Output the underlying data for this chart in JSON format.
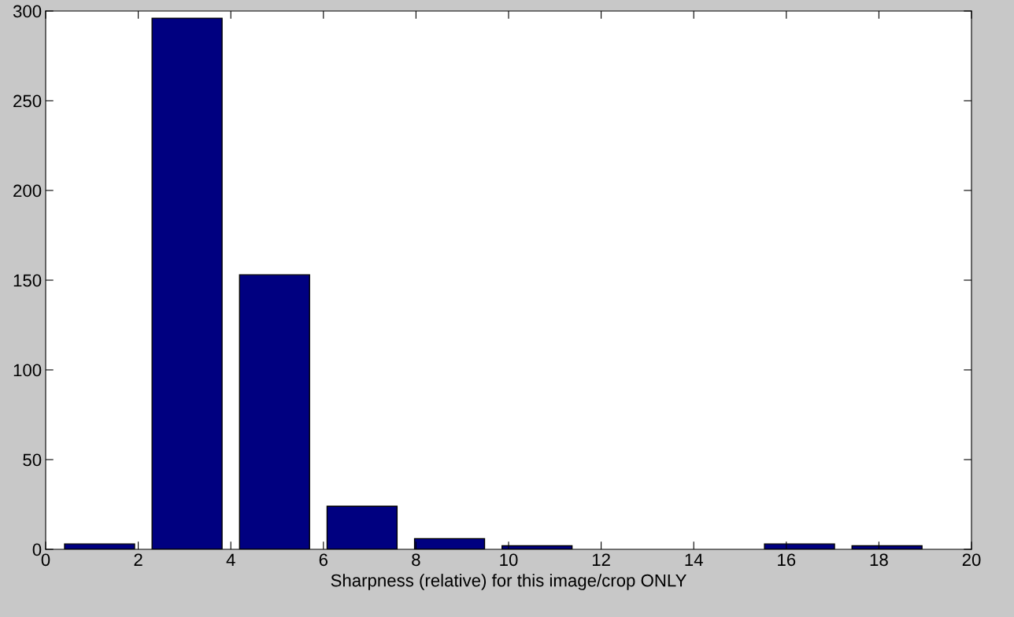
{
  "chart_data": {
    "type": "histogram",
    "xlabel": "Sharpness (relative) for this image/crop ONLY",
    "bins": [
      0.22,
      2.11,
      4.0,
      5.89,
      7.78,
      9.67,
      11.56,
      13.45,
      15.34,
      17.23,
      19.12
    ],
    "values": [
      3,
      296,
      153,
      24,
      6,
      2,
      0,
      0,
      3,
      2
    ],
    "color": "#000080",
    "xlim": [
      0,
      20
    ],
    "xticks": [
      0,
      2,
      4,
      6,
      8,
      10,
      12,
      14,
      16,
      18,
      20
    ],
    "ylim": [
      0,
      300
    ],
    "yticks": [
      0,
      50,
      100,
      150,
      200,
      250,
      300
    ],
    "grid": false
  }
}
